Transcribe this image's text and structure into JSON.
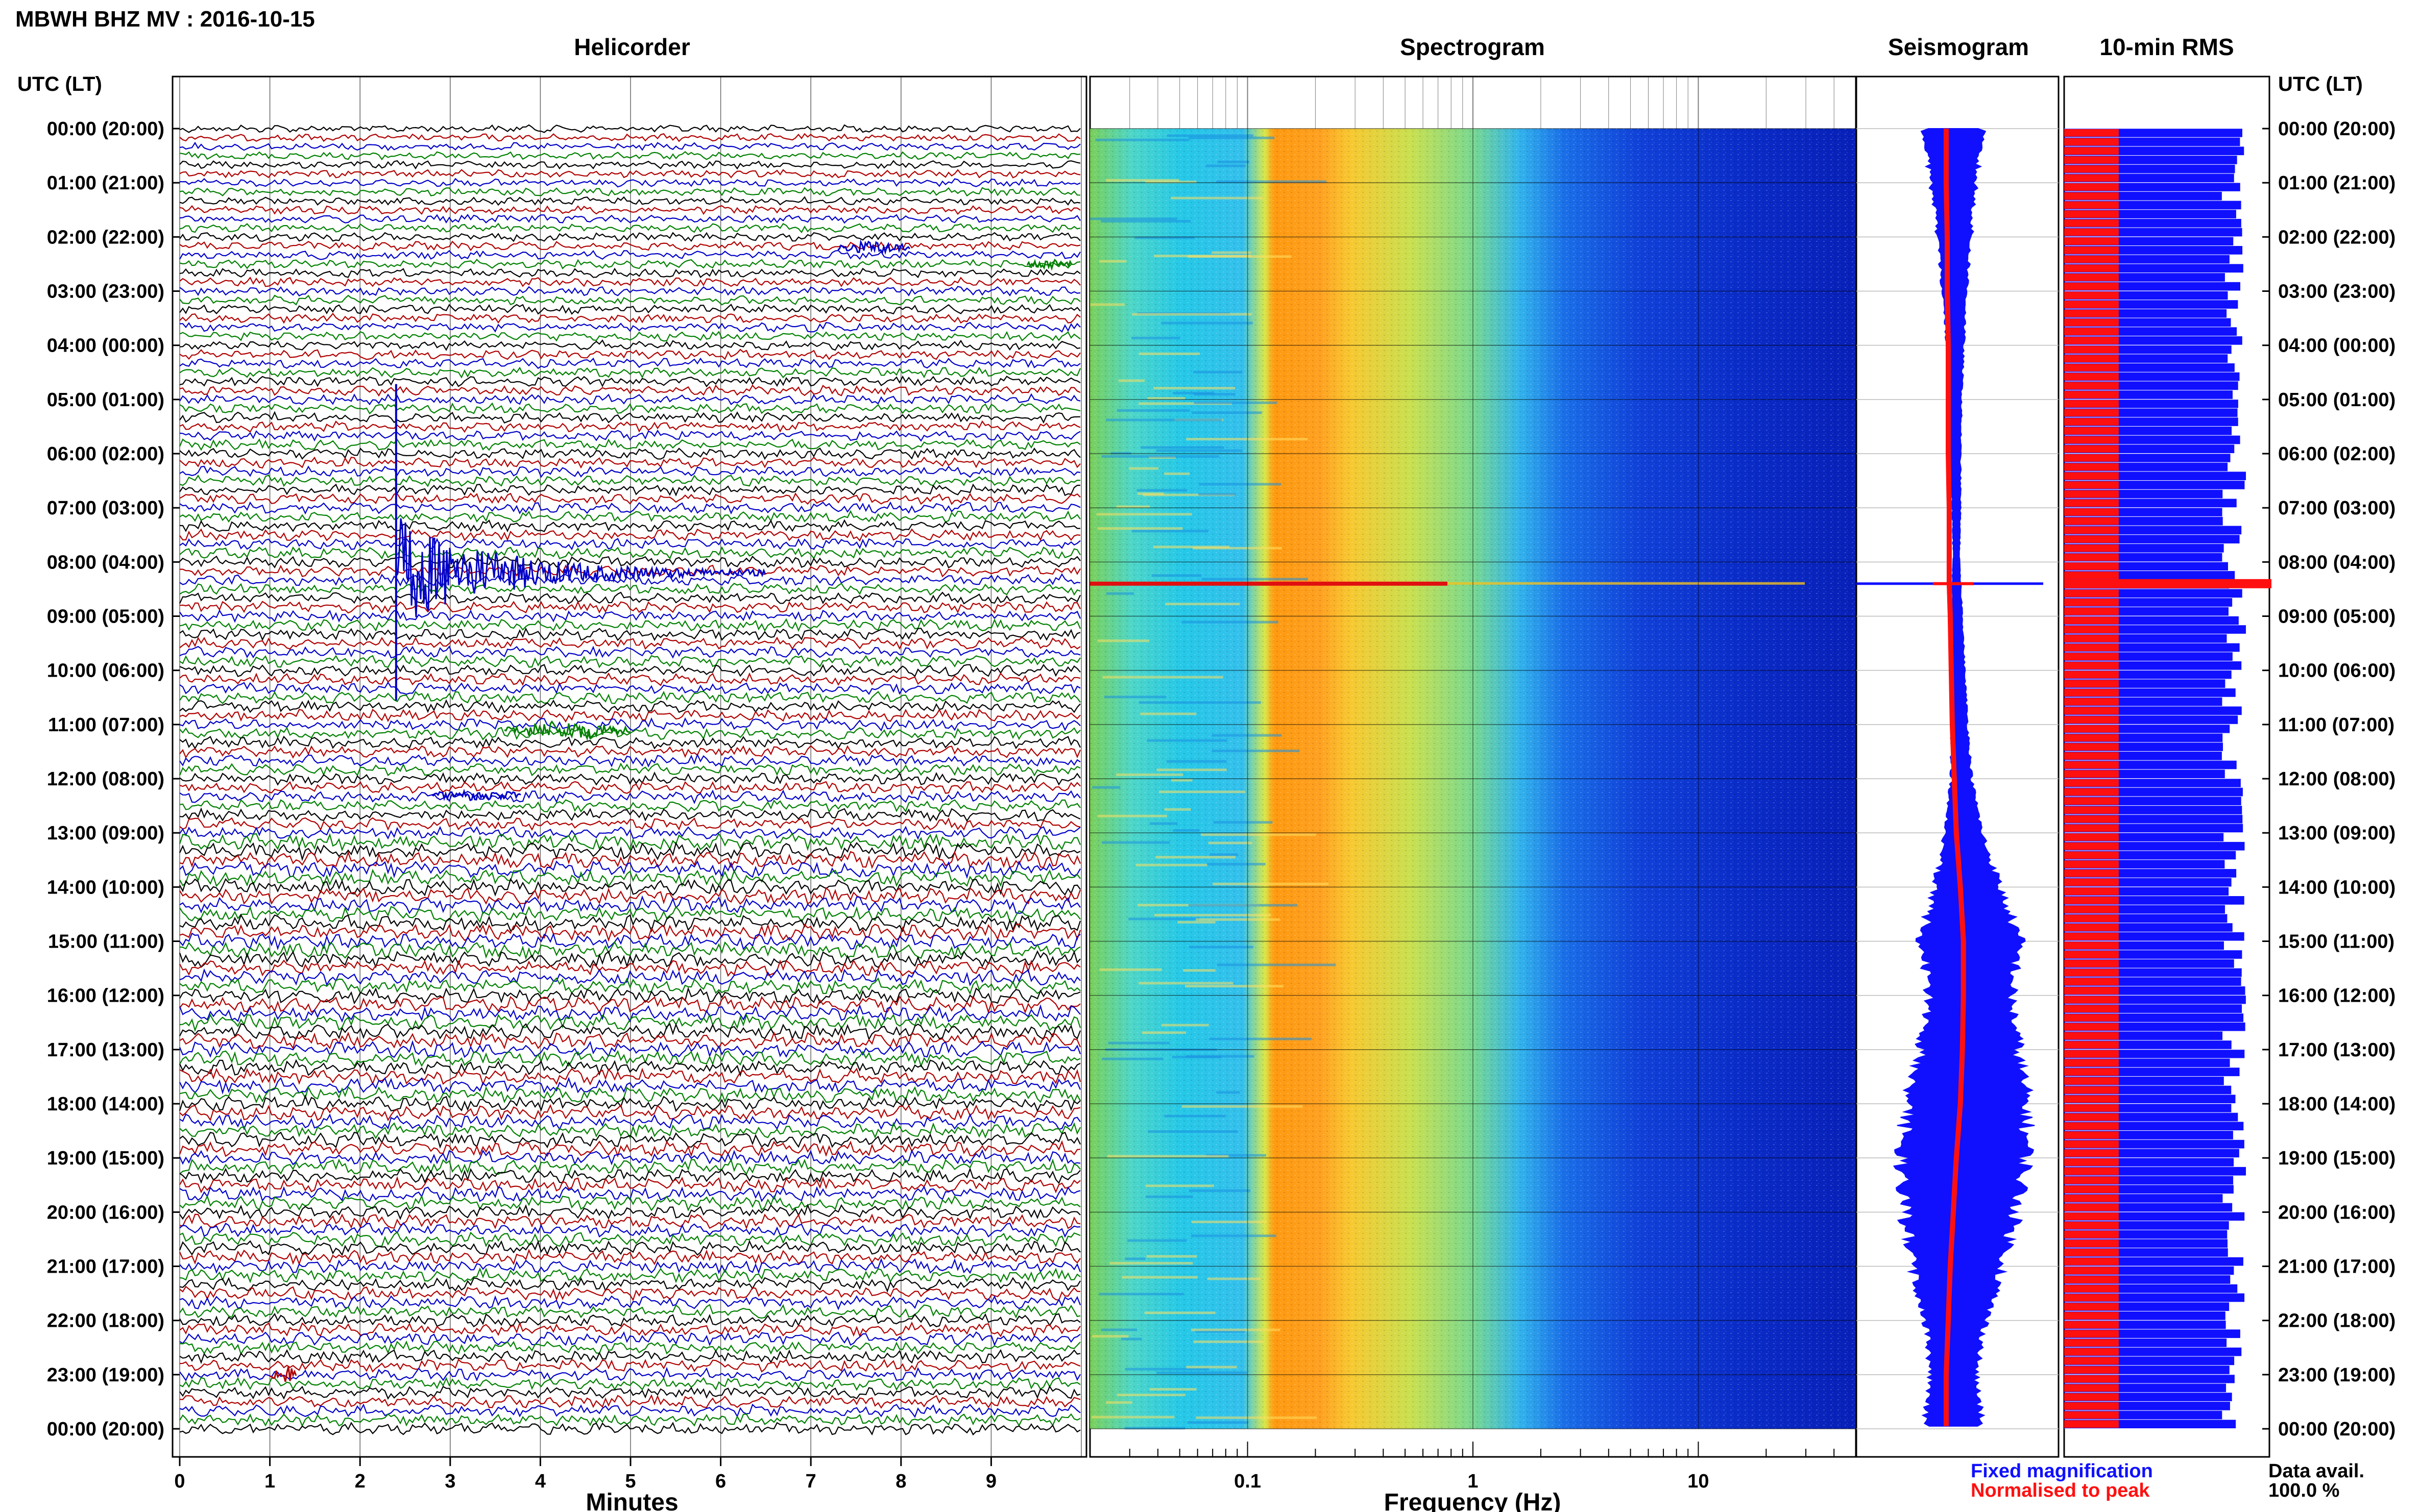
{
  "header": {
    "station_title": "MBWH BHZ MV : 2016-10-15",
    "utc_label_left": "UTC (LT)",
    "utc_label_right": "UTC (LT)"
  },
  "panels": {
    "helicorder_title": "Helicorder",
    "spectrogram_title": "Spectrogram",
    "seismogram_title": "Seismogram",
    "rms_title": "10-min RMS"
  },
  "legend": {
    "fixed": "Fixed magnification",
    "normalised": "Normalised to peak",
    "fixed_color": "#1010ff",
    "normalised_color": "#ff1010"
  },
  "data_avail": {
    "label": "Data avail.",
    "value": "100.0 %"
  },
  "chart_data": [
    {
      "type": "line",
      "name": "helicorder",
      "title": "Helicorder",
      "xlabel": "Minutes",
      "xticks": [
        "0",
        "1",
        "2",
        "3",
        "4",
        "5",
        "6",
        "7",
        "8",
        "9"
      ],
      "xlim": [
        0,
        10
      ],
      "time_labels": [
        "00:00 (20:00)",
        "01:00 (21:00)",
        "02:00 (22:00)",
        "03:00 (23:00)",
        "04:00 (00:00)",
        "05:00 (01:00)",
        "06:00 (02:00)",
        "07:00 (03:00)",
        "08:00 (04:00)",
        "09:00 (05:00)",
        "10:00 (06:00)",
        "11:00 (07:00)",
        "12:00 (08:00)",
        "13:00 (09:00)",
        "14:00 (10:00)",
        "15:00 (11:00)",
        "16:00 (12:00)",
        "17:00 (13:00)",
        "18:00 (14:00)",
        "19:00 (15:00)",
        "20:00 (16:00)",
        "21:00 (17:00)",
        "22:00 (18:00)",
        "23:00 (19:00)",
        "00:00 (20:00)"
      ],
      "trace_colors": [
        "#000000",
        "#b00000",
        "#0000c8",
        "#008000"
      ],
      "lines_per_hour": 6,
      "events": [
        {
          "hour": 2.2,
          "minute_start": 7.3,
          "minute_end": 8.1,
          "amplitude": 0.5,
          "color": "#0000c8"
        },
        {
          "hour": 2.5,
          "minute_start": 9.4,
          "minute_end": 9.9,
          "amplitude": 0.4,
          "color": "#008000"
        },
        {
          "hour": 8.2,
          "minute_start": 2.4,
          "minute_end": 6.5,
          "amplitude": 6.0,
          "color": "#0000c8"
        },
        {
          "hour": 11.1,
          "minute_start": 3.6,
          "minute_end": 5.0,
          "amplitude": 0.8,
          "color": "#008000"
        },
        {
          "hour": 12.3,
          "minute_start": 2.8,
          "minute_end": 3.8,
          "amplitude": 0.4,
          "color": "#0000c8"
        },
        {
          "hour": 23.0,
          "minute_start": 1.0,
          "minute_end": 1.3,
          "amplitude": 0.9,
          "color": "#b00000"
        }
      ]
    },
    {
      "type": "heatmap",
      "name": "spectrogram",
      "title": "Spectrogram",
      "xlabel": "Frequency (Hz)",
      "xscale": "log",
      "xlim": [
        0.02,
        50
      ],
      "xticks": [
        "0.1",
        "1",
        "10"
      ],
      "xtick_values": [
        0.1,
        1,
        10
      ],
      "peak_band_hz": [
        0.15,
        0.45
      ],
      "spike_hour": 8.4
    },
    {
      "type": "area",
      "name": "seismogram",
      "title": "Seismogram",
      "hours": [
        0,
        1,
        2,
        3,
        4,
        5,
        6,
        7,
        8,
        8.4,
        9,
        10,
        11,
        12,
        13,
        14,
        15,
        16,
        17,
        18,
        19,
        20,
        21,
        22,
        23,
        24
      ],
      "fixed_magnification_halfwidth": [
        0.28,
        0.22,
        0.16,
        0.12,
        0.08,
        0.06,
        0.05,
        0.04,
        0.03,
        0.04,
        0.05,
        0.06,
        0.08,
        0.1,
        0.18,
        0.32,
        0.48,
        0.4,
        0.48,
        0.58,
        0.62,
        0.55,
        0.45,
        0.3,
        0.22,
        0.28
      ],
      "normalised_offset": [
        0.0,
        0.0,
        0.01,
        0.01,
        0.02,
        0.02,
        0.02,
        0.03,
        0.03,
        0.03,
        0.04,
        0.05,
        0.06,
        0.08,
        0.1,
        0.14,
        0.17,
        0.17,
        0.16,
        0.14,
        0.1,
        0.07,
        0.04,
        0.02,
        0.0,
        0.0
      ],
      "spike_hour": 8.4
    },
    {
      "type": "bar",
      "name": "rms",
      "title": "10-min RMS",
      "bars_per_hour": 6,
      "normalised_fraction": 0.27,
      "fixed_mean": 0.84,
      "spike_hour": 8.4
    }
  ]
}
